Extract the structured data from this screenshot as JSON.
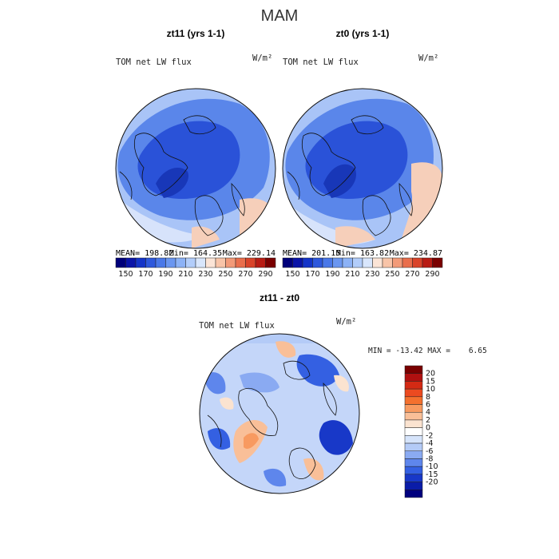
{
  "page_title": "MAM",
  "colors": {
    "deep_blue": "#2a52d8",
    "mid_blue": "#5a86ea",
    "light_blue": "#a9c4f7",
    "pale_blue": "#d7e3fb",
    "peach": "#f6cfba",
    "orange_red": "#e8845c",
    "dark_blue_core": "#1837b8"
  },
  "chart_data": [
    {
      "type": "heatmap",
      "projection": "north-polar-stereographic",
      "title": "zt11 (yrs 1-1)",
      "subtitle": "TOM net LW flux",
      "units": "W/m²",
      "stats": {
        "mean_label": "MEAN= 198.82",
        "min_label": "Min= 164.35",
        "max_label": "Max= 229.14"
      },
      "stats_values": {
        "mean": 198.82,
        "min": 164.35,
        "max": 229.14
      },
      "colorbar": {
        "orientation": "horizontal",
        "tick_labels": [
          "150",
          "170",
          "190",
          "210",
          "230",
          "250",
          "270",
          "290"
        ],
        "levels": [
          140,
          150,
          160,
          170,
          180,
          190,
          200,
          210,
          220,
          230,
          240,
          250,
          260,
          270,
          280,
          290,
          300
        ],
        "colors": [
          "#00007a",
          "#0a14a8",
          "#1434c8",
          "#2e58dc",
          "#4a78e8",
          "#6a96f0",
          "#8cb2f6",
          "#b2cdfa",
          "#d8e6fc",
          "#fbe4d6",
          "#f8c4a8",
          "#f29a78",
          "#e96e4c",
          "#d9442a",
          "#b81c14",
          "#7a0000"
        ]
      }
    },
    {
      "type": "heatmap",
      "projection": "north-polar-stereographic",
      "title": "zt0 (yrs 1-1)",
      "subtitle": "TOM net LW flux",
      "units": "W/m²",
      "stats": {
        "mean_label": "MEAN= 201.15",
        "min_label": "Min= 163.82",
        "max_label": "Max= 234.87"
      },
      "stats_values": {
        "mean": 201.15,
        "min": 163.82,
        "max": 234.87
      },
      "colorbar": {
        "orientation": "horizontal",
        "tick_labels": [
          "150",
          "170",
          "190",
          "210",
          "230",
          "250",
          "270",
          "290"
        ],
        "levels": [
          140,
          150,
          160,
          170,
          180,
          190,
          200,
          210,
          220,
          230,
          240,
          250,
          260,
          270,
          280,
          290,
          300
        ],
        "colors": [
          "#00007a",
          "#0a14a8",
          "#1434c8",
          "#2e58dc",
          "#4a78e8",
          "#6a96f0",
          "#8cb2f6",
          "#b2cdfa",
          "#d8e6fc",
          "#fbe4d6",
          "#f8c4a8",
          "#f29a78",
          "#e96e4c",
          "#d9442a",
          "#b81c14",
          "#7a0000"
        ]
      }
    },
    {
      "type": "heatmap",
      "projection": "north-polar-stereographic",
      "title": "zt11 - zt0",
      "subtitle": "TOM net LW flux",
      "units": "W/m²",
      "stats": {
        "minmax_label": "MIN = -13.42 MAX =    6.65"
      },
      "stats_values": {
        "min": -13.42,
        "max": 6.65
      },
      "colorbar": {
        "orientation": "vertical",
        "tick_labels": [
          "20",
          "15",
          "10",
          "8",
          "6",
          "4",
          "2",
          "0",
          "-2",
          "-4",
          "-6",
          "-8",
          "-10",
          "-15",
          "-20"
        ],
        "colors": [
          "#7a0000",
          "#b01010",
          "#d42a14",
          "#ec4a20",
          "#f4702e",
          "#f89a60",
          "#f9bf98",
          "#fbe3d0",
          "#ffffff",
          "#d6e4fb",
          "#b4cbf7",
          "#8aaaf2",
          "#5e86ec",
          "#3460e2",
          "#1838c8",
          "#0a1ca8",
          "#00007e"
        ]
      }
    }
  ]
}
